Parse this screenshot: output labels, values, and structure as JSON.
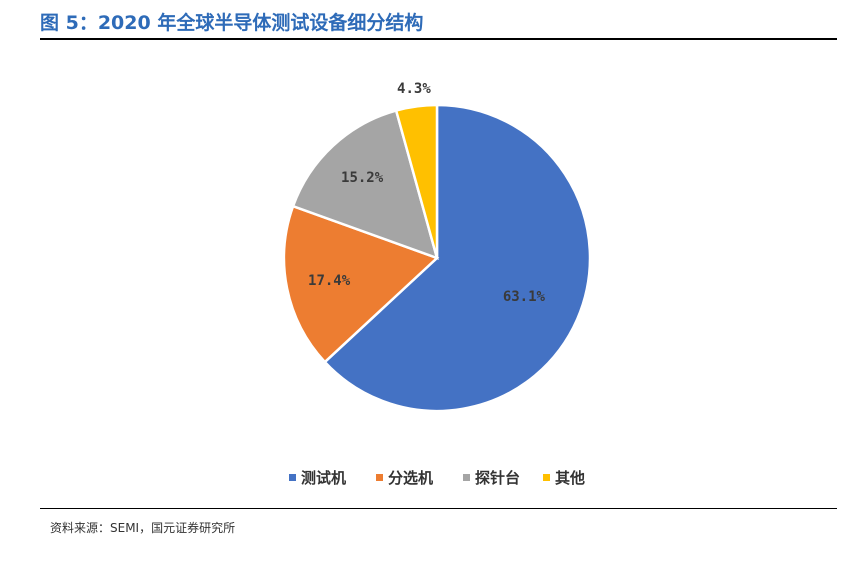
{
  "header": {
    "title": "图 5：2020 年全球半导体测试设备细分结构"
  },
  "footer": {
    "source": "资料来源：SEMI，国元证券研究所"
  },
  "chart_data": {
    "type": "pie",
    "title": "",
    "legend_position": "bottom",
    "slices": [
      {
        "name": "测试机",
        "value": 63.1,
        "label": "63.1%",
        "color": "#4472c4"
      },
      {
        "name": "分选机",
        "value": 17.4,
        "label": "17.4%",
        "color": "#ed7d31"
      },
      {
        "name": "探针台",
        "value": 15.2,
        "label": "15.2%",
        "color": "#a5a5a5"
      },
      {
        "name": "其他",
        "value": 4.3,
        "label": "4.3%",
        "color": "#ffc000"
      }
    ]
  }
}
